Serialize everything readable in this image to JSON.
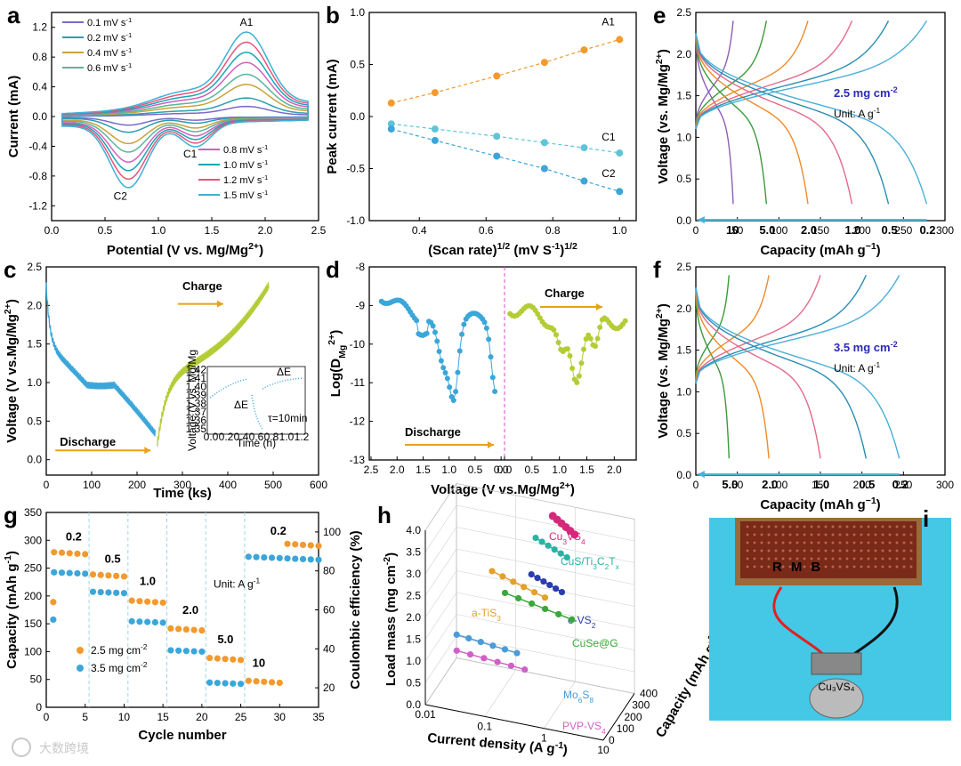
{
  "figure_labels": [
    "a",
    "b",
    "c",
    "d",
    "e",
    "f",
    "g",
    "h",
    "i"
  ],
  "watermark": "大数跨境",
  "colors": {
    "cv": [
      "#7b68c9",
      "#2a9fb0",
      "#c8a23a",
      "#58b69b",
      "#d25fc0",
      "#17a6b4",
      "#e5567a",
      "#3cb0d6"
    ],
    "gcd": [
      "#8e5fb5",
      "#3b9a3b",
      "#f08a2a",
      "#e36a8b",
      "#2a8db3",
      "#49b0d8"
    ],
    "orange": "#f29a2e",
    "blue": "#3ba6d9",
    "lime": "#b4cc35"
  },
  "chart_data": [
    {
      "panel": "a",
      "type": "line",
      "xlabel": "Potential (V vs. Mg/Mg",
      "xlabel_sup": "2+",
      "xlabel_end": ")",
      "ylabel": "Current (mA)",
      "xlim": [
        0,
        2.5
      ],
      "ylim": [
        -1.4,
        1.4
      ],
      "xticks": [
        "0.0",
        "0.5",
        "1.0",
        "1.5",
        "2.0",
        "2.5"
      ],
      "yticks": [
        "-1.2",
        "-0.8",
        "-0.4",
        "0.0",
        "0.4",
        "0.8",
        "1.2"
      ],
      "series_names": [
        "0.1 mV s",
        "0.2 mV s",
        "0.4 mV s",
        "0.6 mV s",
        "0.8 mV s",
        "1.0 mV s",
        "1.2 mV s",
        "1.5 mV s"
      ],
      "series_sup": "-1",
      "scale": [
        0.12,
        0.22,
        0.38,
        0.5,
        0.64,
        0.76,
        0.88,
        1.0
      ],
      "peaks": {
        "A1": [
          1.83,
          1.02
        ],
        "C1": [
          1.35,
          -0.35
        ],
        "C2": [
          0.72,
          -0.95
        ]
      },
      "annotations": [
        "A1",
        "C1",
        "C2"
      ]
    },
    {
      "panel": "b",
      "type": "scatter",
      "xlabel": "(Scan rate)",
      "xlabel_sup": "1/2",
      "xlabel_mid": " (mV S",
      "xlabel_sup2": "-1",
      "xlabel_end": ")",
      "ylabel": "Peak current (mA)",
      "xlim": [
        0.25,
        1.05
      ],
      "ylim": [
        -1.0,
        1.0
      ],
      "xticks": [
        "0.4",
        "0.6",
        "0.8",
        "1.0"
      ],
      "yticks": [
        "-1.0",
        "-0.5",
        "0.0",
        "0.5",
        "1.0"
      ],
      "x": [
        0.316,
        0.447,
        0.632,
        0.775,
        0.894,
        1.0
      ],
      "series": [
        {
          "name": "A1",
          "values": [
            0.13,
            0.23,
            0.39,
            0.52,
            0.64,
            0.74
          ]
        },
        {
          "name": "C1",
          "values": [
            -0.07,
            -0.12,
            -0.19,
            -0.25,
            -0.3,
            -0.35
          ]
        },
        {
          "name": "C2",
          "values": [
            -0.12,
            -0.23,
            -0.38,
            -0.5,
            -0.62,
            -0.72
          ]
        }
      ]
    },
    {
      "panel": "c",
      "type": "line",
      "xlabel": "Time (ks)",
      "ylabel": "Voltage (V vs.Mg/Mg",
      "ylabel_sup": "2+",
      "ylabel_end": ")",
      "xlim": [
        0,
        600
      ],
      "ylim": [
        -0.2,
        2.5
      ],
      "xticks": [
        "0",
        "100",
        "200",
        "300",
        "400",
        "500",
        "600"
      ],
      "yticks": [
        "0.0",
        "0.5",
        "1.0",
        "1.5",
        "2.0",
        "2.5"
      ],
      "labels": [
        "Charge",
        "Discharge"
      ],
      "inset": {
        "xlabel": "Time (h)",
        "ylabel": "Voltage (V vs. Mg/Mg",
        "xticks": [
          "0.0",
          "0.2",
          "0.4",
          "0.6",
          "0.8",
          "1.0",
          "1.2"
        ],
        "yticks": [
          "1.35",
          "1.36",
          "1.37",
          "1.38",
          "1.39",
          "1.40",
          "1.41",
          "1.42"
        ],
        "ann": [
          "ΔE",
          "ΔE",
          "τ=10min"
        ]
      }
    },
    {
      "panel": "d",
      "type": "scatter",
      "xlabel": "Voltage (V vs.Mg/Mg",
      "xlabel_sup": "2+",
      "xlabel_end": ")",
      "ylabel": "Log(D",
      "ylabel_sub": "Mg",
      "ylabel_sup": "2+",
      "ylabel_end": ")",
      "xlim": [
        2.4,
        -0.1
      ],
      "ylim": [
        -13,
        -8
      ],
      "xticks_left": [
        "2.5",
        "2.0",
        "1.5",
        "1.0",
        "0.5",
        "0.0"
      ],
      "xticks_right": [
        "0.0",
        "0.5",
        "1.0",
        "1.5",
        "2.0"
      ],
      "yticks": [
        "-8",
        "-9",
        "-10",
        "-11",
        "-12",
        "-13"
      ],
      "labels": [
        "Charge",
        "Discharge"
      ]
    },
    {
      "panel": "e",
      "type": "line",
      "xlabel": "Capacity (mAh g",
      "xlabel_sup": "−1",
      "xlabel_end": ")",
      "ylabel": "Voltage (vs. Mg/Mg",
      "ylabel_sup": "2+",
      "ylabel_end": ")",
      "xlim": [
        0,
        300
      ],
      "ylim": [
        0,
        2.5
      ],
      "xticks": [
        "0",
        "50",
        "100",
        "150",
        "200",
        "250",
        "300"
      ],
      "yticks": [
        "0.0",
        "0.5",
        "1.0",
        "1.5",
        "2.0",
        "2.5"
      ],
      "loading": "2.5 mg cm",
      "loading_sup": "-2",
      "unit": "Unit: A g",
      "unit_sup": "-1",
      "rates": [
        "10",
        "5.0",
        "2.0",
        "1.0",
        "0.5",
        "0.2"
      ],
      "capacities": [
        45,
        85,
        135,
        188,
        232,
        278
      ]
    },
    {
      "panel": "f",
      "type": "line",
      "xlabel": "Capacity (mAh g",
      "xlabel_sup": "−1",
      "xlabel_end": ")",
      "ylabel": "Voltage (vs. Mg/Mg",
      "ylabel_sup": "2+",
      "ylabel_end": ")",
      "xlim": [
        0,
        300
      ],
      "ylim": [
        0,
        2.5
      ],
      "xticks": [
        "0",
        "50",
        "100",
        "150",
        "200",
        "250",
        "300"
      ],
      "yticks": [
        "0.0",
        "0.5",
        "1.0",
        "1.5",
        "2.0",
        "2.5"
      ],
      "loading": "3.5 mg cm",
      "loading_sup": "-2",
      "unit": "Unit: A g",
      "unit_sup": "-1",
      "rates": [
        "5.0",
        "2.0",
        "1.0",
        "0.5",
        "0.2"
      ],
      "capacities": [
        40,
        88,
        150,
        205,
        245
      ]
    },
    {
      "panel": "g",
      "type": "scatter",
      "xlabel": "Cycle number",
      "ylabel": "Capacity (mAh g",
      "ylabel_sup": "-1",
      "ylabel_end": ")",
      "ylabel_right": "Coulombic efficiency (%)",
      "xlim": [
        0,
        35
      ],
      "ylim": [
        0,
        350
      ],
      "ylim_right": [
        0,
        120
      ],
      "xticks": [
        "0",
        "5",
        "10",
        "15",
        "20",
        "25",
        "30",
        "35"
      ],
      "yticks": [
        "0",
        "50",
        "100",
        "150",
        "200",
        "250",
        "300",
        "350"
      ],
      "yticks_right": [
        "20",
        "40",
        "60",
        "80",
        "100"
      ],
      "rates": [
        "0.2",
        "0.5",
        "1.0",
        "2.0",
        "5.0",
        "10",
        "0.2"
      ],
      "unit": "Unit: A g",
      "unit_sup": "-1",
      "series": [
        {
          "name": "2.5 mg cm",
          "sup": "-2",
          "values": [
            {
              "rate": "0.2",
              "cap": 275
            },
            {
              "rate": "0.5",
              "cap": 235
            },
            {
              "rate": "1.0",
              "cap": 188
            },
            {
              "rate": "2.0",
              "cap": 138
            },
            {
              "rate": "5.0",
              "cap": 85
            },
            {
              "rate": "10",
              "cap": 44
            },
            {
              "rate": "0.2",
              "cap": 290
            }
          ]
        },
        {
          "name": "3.5 mg cm",
          "sup": "-2",
          "values": [
            {
              "rate": "0.2",
              "cap": 240
            },
            {
              "rate": "0.5",
              "cap": 205
            },
            {
              "rate": "1.0",
              "cap": 152
            },
            {
              "rate": "2.0",
              "cap": 100
            },
            {
              "rate": "5.0",
              "cap": 42
            },
            {
              "rate": "0.2",
              "cap": 265
            }
          ]
        }
      ],
      "ce_first": [
        {
          "series": "2.5 mg cm",
          "ce": 64
        },
        {
          "series": "3.5 mg cm",
          "ce": 55
        }
      ]
    },
    {
      "panel": "h",
      "type": "scatter",
      "xlabel": "Current density (A g",
      "xlabel_sup": "-1",
      "xlabel_end": ")",
      "ylabel": "Load mass (mg cm",
      "ylabel_sup": "-2",
      "ylabel_end": ")",
      "zlabel": "Capacity (mAh g",
      "zlabel_sup": "-1",
      "zlabel_end": ")",
      "xticks": [
        "0.01",
        "0.1",
        "1",
        "10"
      ],
      "yticks": [
        "0.0",
        "0.5",
        "1.0",
        "1.5",
        "2.0",
        "2.5",
        "3.0",
        "3.5",
        "4.0"
      ],
      "zticks": [
        "0",
        "100",
        "200",
        "300",
        "400"
      ],
      "materials": [
        {
          "name": "Cu",
          "sub": "3",
          "tail": "VS",
          "sub2": "4",
          "color": "#d6287a"
        },
        {
          "name": "CuS/Ti",
          "sub": "3",
          "tail": "C",
          "sub2": "2",
          "tail2": "T",
          "sub3": "x",
          "color": "#2ab3a5"
        },
        {
          "name": "e-VS",
          "sub": "2",
          "color": "#2b3cb0"
        },
        {
          "name": "a-TiS",
          "sub": "3",
          "color": "#e3a02a"
        },
        {
          "name": "CuSe@G",
          "color": "#3aa83a"
        },
        {
          "name": "Mo",
          "sub": "6",
          "tail": "S",
          "sub2": "8",
          "color": "#4a9bd6"
        },
        {
          "name": "PVP-VS",
          "sub": "4",
          "color": "#d060c8"
        }
      ]
    }
  ],
  "photo": {
    "led_text": "RMB",
    "battery_label": "Cu₃VS₄"
  }
}
